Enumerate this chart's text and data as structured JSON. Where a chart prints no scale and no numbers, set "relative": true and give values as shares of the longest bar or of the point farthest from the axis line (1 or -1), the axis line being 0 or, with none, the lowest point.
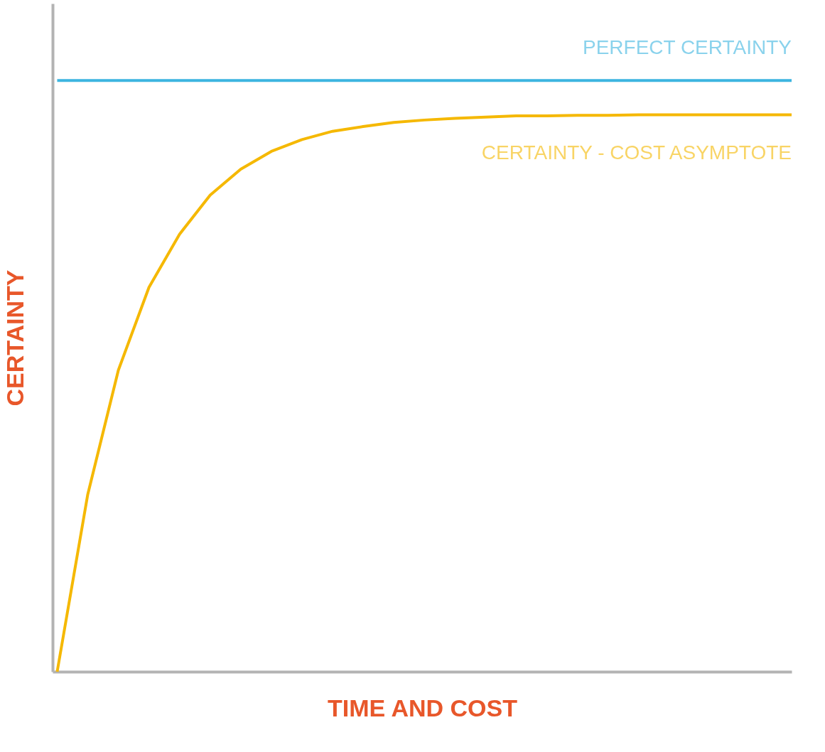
{
  "chart_data": {
    "type": "line",
    "relative": true,
    "xlabel": "TIME AND COST",
    "ylabel": "CERTAINTY",
    "grid": false,
    "legend": false,
    "categories": [
      null,
      null,
      null,
      null,
      null,
      null,
      null,
      null,
      null,
      null,
      null,
      null,
      null,
      null,
      null,
      null,
      null,
      null,
      null,
      null,
      null,
      null,
      null,
      null,
      null
    ],
    "series": [
      {
        "name": "PERFECT CERTAINTY",
        "color": "#3db5e0",
        "values": [
          1,
          1,
          1,
          1,
          1,
          1,
          1,
          1,
          1,
          1,
          1,
          1,
          1,
          1,
          1,
          1,
          1,
          1,
          1,
          1,
          1,
          1,
          1,
          1,
          1
        ]
      },
      {
        "name": "CERTAINTY - COST ASYMPTOTE",
        "color": "#f5b800",
        "values": [
          0,
          0.3,
          0.51,
          0.65,
          0.74,
          0.806,
          0.85,
          0.88,
          0.9,
          0.914,
          0.922,
          0.929,
          0.933,
          0.936,
          0.938,
          0.94,
          0.94,
          0.941,
          0.941,
          0.942,
          0.942,
          0.942,
          0.942,
          0.942,
          0.942
        ]
      }
    ]
  }
}
